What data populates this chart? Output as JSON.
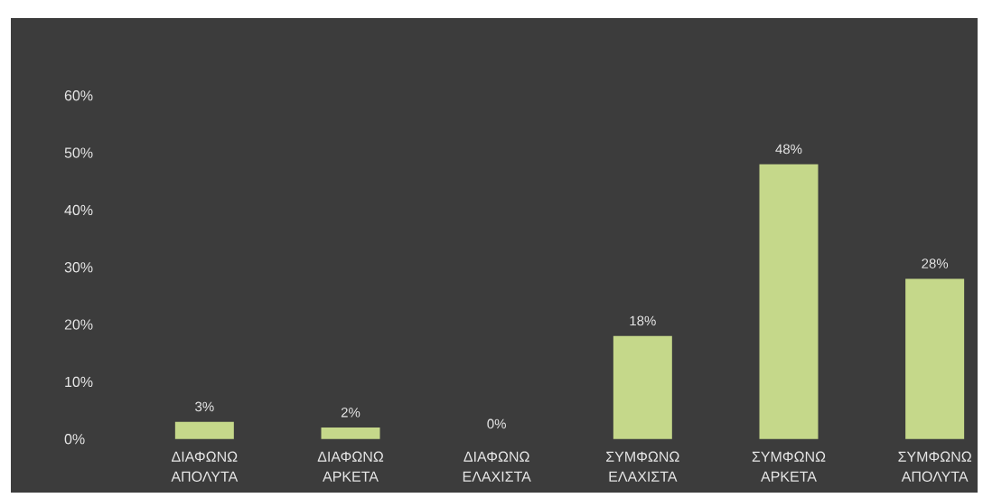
{
  "chart_data": {
    "type": "bar",
    "categories": [
      "ΔΙΑΦΩΝΩ ΑΠΟΛΥΤΑ",
      "ΔΙΑΦΩΝΩ ΑΡΚΕΤΑ",
      "ΔΙΑΦΩΝΩ ΕΛΑΧΙΣΤΑ",
      "ΣΥΜΦΩΝΩ ΕΛΑΧΙΣΤΑ",
      "ΣΥΜΦΩΝΩ ΑΡΚΕΤΑ",
      "ΣΥΜΦΩΝΩ ΑΠΟΛΥΤΑ"
    ],
    "values": [
      3,
      2,
      0,
      18,
      48,
      28
    ],
    "value_labels": [
      "3%",
      "2%",
      "0%",
      "18%",
      "48%",
      "28%"
    ],
    "color": "#c5d88a",
    "ylim": [
      0,
      60
    ],
    "yticks": [
      {
        "value": 0,
        "label": "0%"
      },
      {
        "value": 10,
        "label": "10%"
      },
      {
        "value": 20,
        "label": "20%"
      },
      {
        "value": 30,
        "label": "30%"
      },
      {
        "value": 40,
        "label": "40%"
      },
      {
        "value": 50,
        "label": "50%"
      },
      {
        "value": 60,
        "label": "60%"
      }
    ]
  }
}
